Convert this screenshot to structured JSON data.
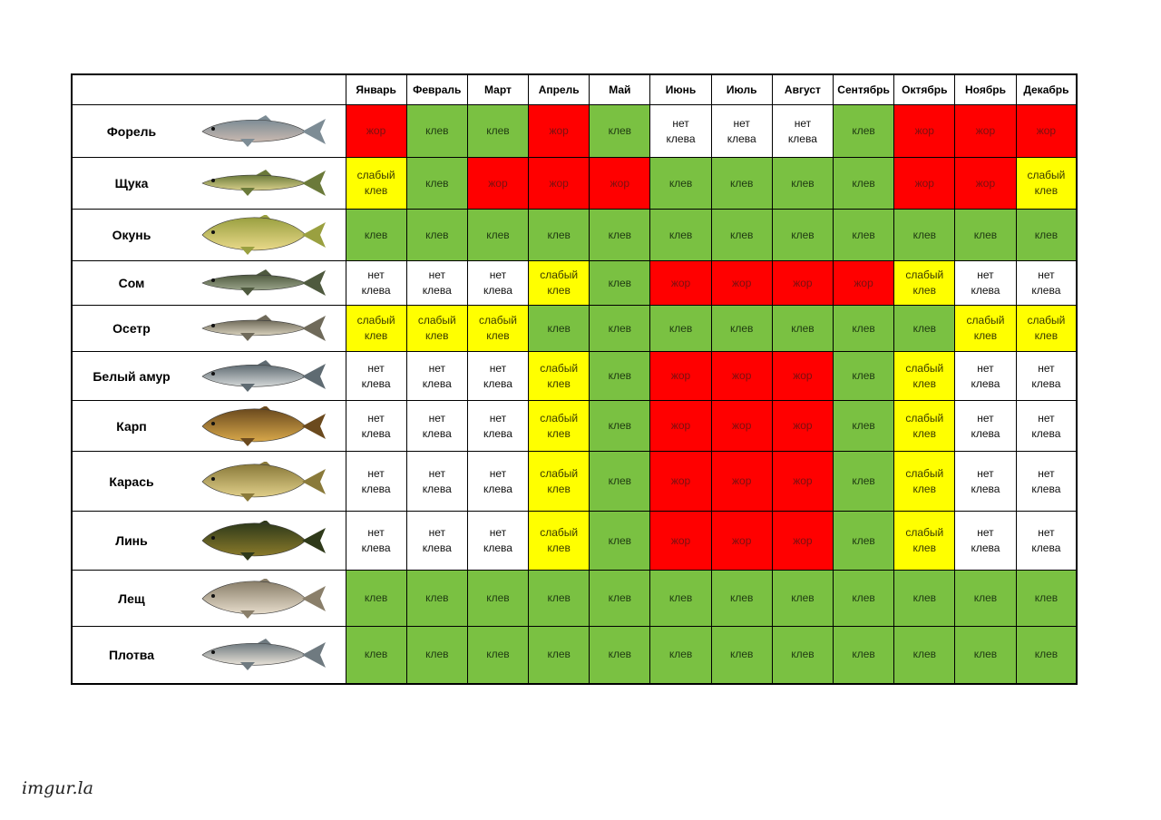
{
  "months": [
    "Январь",
    "Февраль",
    "Март",
    "Апрель",
    "Май",
    "Июнь",
    "Июль",
    "Август",
    "Сентябрь",
    "Октябрь",
    "Ноябрь",
    "Декабрь"
  ],
  "status_text": {
    "zhor": "жор",
    "klev": "клев",
    "weak": "слабый\nклев",
    "none": "нет\nклева"
  },
  "status_colors": {
    "zhor": "#ff0000",
    "klev": "#7ac142",
    "weak": "#ffff00",
    "none": "#ffffff"
  },
  "fish": [
    {
      "name": "Форель",
      "icon": "trout-fish-icon",
      "colors": [
        "#7d8c95",
        "#c9b9b0"
      ],
      "months": [
        "zhor",
        "klev",
        "klev",
        "zhor",
        "klev",
        "none",
        "none",
        "none",
        "klev",
        "zhor",
        "zhor",
        "zhor"
      ]
    },
    {
      "name": "Щука",
      "icon": "pike-fish-icon",
      "colors": [
        "#6b7a3a",
        "#d8cf8a"
      ],
      "months": [
        "weak",
        "klev",
        "zhor",
        "zhor",
        "zhor",
        "klev",
        "klev",
        "klev",
        "klev",
        "zhor",
        "zhor",
        "weak"
      ]
    },
    {
      "name": "Окунь",
      "icon": "perch-fish-icon",
      "colors": [
        "#9aa040",
        "#e9d98a"
      ],
      "months": [
        "klev",
        "klev",
        "klev",
        "klev",
        "klev",
        "klev",
        "klev",
        "klev",
        "klev",
        "klev",
        "klev",
        "klev"
      ]
    },
    {
      "name": "Сом",
      "icon": "catfish-icon",
      "colors": [
        "#4f5a3f",
        "#9aa48a"
      ],
      "months": [
        "none",
        "none",
        "none",
        "weak",
        "klev",
        "zhor",
        "zhor",
        "zhor",
        "zhor",
        "weak",
        "none",
        "none"
      ]
    },
    {
      "name": "Осетр",
      "icon": "sturgeon-fish-icon",
      "colors": [
        "#6f6a5a",
        "#d9d2bd"
      ],
      "months": [
        "weak",
        "weak",
        "weak",
        "klev",
        "klev",
        "klev",
        "klev",
        "klev",
        "klev",
        "klev",
        "weak",
        "weak"
      ]
    },
    {
      "name": "Белый амур",
      "icon": "grass-carp-fish-icon",
      "colors": [
        "#5f6b72",
        "#d4d8d8"
      ],
      "months": [
        "none",
        "none",
        "none",
        "weak",
        "klev",
        "zhor",
        "zhor",
        "zhor",
        "klev",
        "weak",
        "none",
        "none"
      ]
    },
    {
      "name": "Карп",
      "icon": "carp-fish-icon",
      "colors": [
        "#6b4a1e",
        "#d8a84a"
      ],
      "months": [
        "none",
        "none",
        "none",
        "weak",
        "klev",
        "zhor",
        "zhor",
        "zhor",
        "klev",
        "weak",
        "none",
        "none"
      ]
    },
    {
      "name": "Карась",
      "icon": "crucian-fish-icon",
      "colors": [
        "#8a7a3a",
        "#e0cf8a"
      ],
      "months": [
        "none",
        "none",
        "none",
        "weak",
        "klev",
        "zhor",
        "zhor",
        "zhor",
        "klev",
        "weak",
        "none",
        "none"
      ]
    },
    {
      "name": "Линь",
      "icon": "tench-fish-icon",
      "colors": [
        "#2f3a1a",
        "#8a7a2a"
      ],
      "months": [
        "none",
        "none",
        "none",
        "weak",
        "klev",
        "zhor",
        "zhor",
        "zhor",
        "klev",
        "weak",
        "none",
        "none"
      ]
    },
    {
      "name": "Лещ",
      "icon": "bream-fish-icon",
      "colors": [
        "#8a7f6a",
        "#e6dccb"
      ],
      "months": [
        "klev",
        "klev",
        "klev",
        "klev",
        "klev",
        "klev",
        "klev",
        "klev",
        "klev",
        "klev",
        "klev",
        "klev"
      ]
    },
    {
      "name": "Плотва",
      "icon": "roach-fish-icon",
      "colors": [
        "#6f7a80",
        "#e8e2d8"
      ],
      "months": [
        "klev",
        "klev",
        "klev",
        "klev",
        "klev",
        "klev",
        "klev",
        "klev",
        "klev",
        "klev",
        "klev",
        "klev"
      ]
    }
  ],
  "watermark": "imgur.la"
}
